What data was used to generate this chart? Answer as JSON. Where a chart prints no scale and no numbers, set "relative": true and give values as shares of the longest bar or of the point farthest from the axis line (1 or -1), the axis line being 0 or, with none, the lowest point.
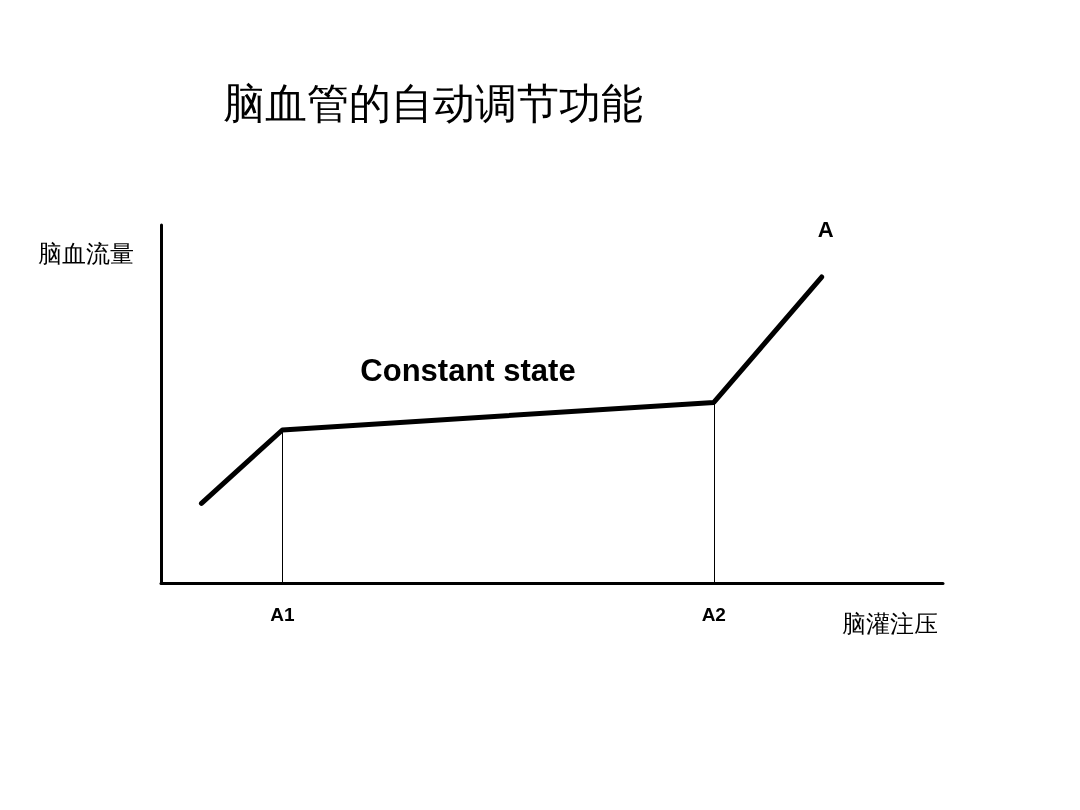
{
  "chart_data": {
    "type": "line",
    "title": "脑血管的自动调节功能",
    "xlabel": "脑灌注压",
    "ylabel": "脑血流量",
    "relative": true,
    "categories": [
      null,
      null,
      null,
      null,
      "A1",
      null,
      null,
      null,
      null,
      null,
      null,
      null,
      null,
      null,
      null,
      null,
      null,
      null,
      null,
      null,
      "A2",
      null,
      null,
      null,
      null,
      null,
      null,
      null,
      null
    ],
    "series": [
      {
        "name": "A",
        "color": "#000000",
        "values": [
          null,
          0.26,
          null,
          null,
          0.5,
          null,
          null,
          null,
          null,
          null,
          null,
          null,
          null,
          null,
          null,
          null,
          null,
          null,
          null,
          null,
          0.59,
          null,
          null,
          null,
          1,
          null,
          null,
          null,
          null
        ]
      }
    ],
    "ref_lines": [
      {
        "axis": "x",
        "value": "A1",
        "color": "#000000"
      },
      {
        "axis": "x",
        "value": "A2",
        "color": "#000000"
      }
    ],
    "annotations": [
      "Constant state"
    ],
    "marker": "none",
    "line_style": "solid",
    "grid": false,
    "legend": false,
    "tick_labels": "x"
  }
}
